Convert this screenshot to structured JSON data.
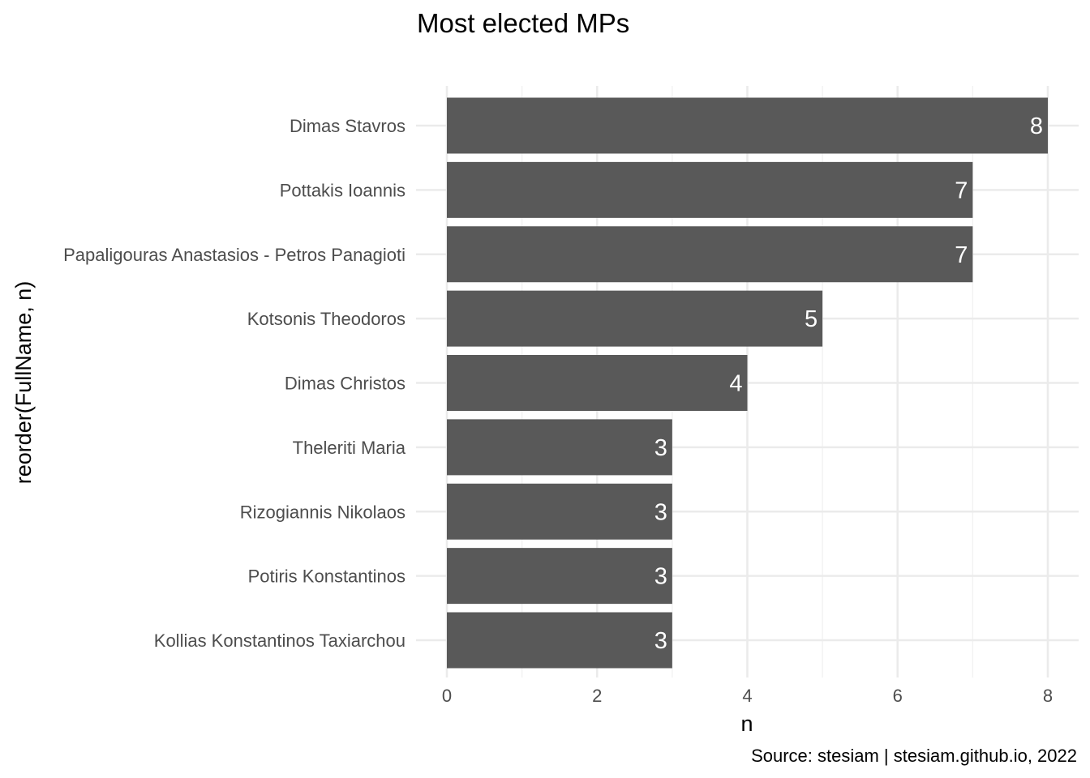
{
  "chart_data": {
    "type": "bar",
    "orientation": "horizontal",
    "title": "Most elected MPs",
    "xlabel": "n",
    "ylabel": "reorder(FullName, n)",
    "caption": "Source: stesiam | stesiam.github.io, 2022",
    "categories": [
      "Dimas Stavros",
      "Pottakis Ioannis",
      "Papaligouras Anastasios - Petros Panagioti",
      "Kotsonis Theodoros",
      "Dimas Christos",
      "Theleriti Maria",
      "Rizogiannis Nikolaos",
      "Potiris Konstantinos",
      "Kollias Konstantinos Taxiarchou"
    ],
    "values": [
      8,
      7,
      7,
      5,
      4,
      3,
      3,
      3,
      3
    ],
    "data_labels": [
      "8",
      "7",
      "7",
      "5",
      "4",
      "3",
      "3",
      "3",
      "3"
    ],
    "xlim": [
      0,
      8
    ],
    "xticks": [
      0,
      2,
      4,
      6,
      8
    ],
    "xtick_labels": [
      "0",
      "2",
      "4",
      "6",
      "8"
    ],
    "grid": true,
    "legend": "none",
    "colors": {
      "bar": "#595959",
      "label": "#ffffff",
      "grid_major": "#ebebeb",
      "grid_minor": "#f2f2f2",
      "tick_text": "#4d4d4d",
      "text": "#000000"
    }
  }
}
